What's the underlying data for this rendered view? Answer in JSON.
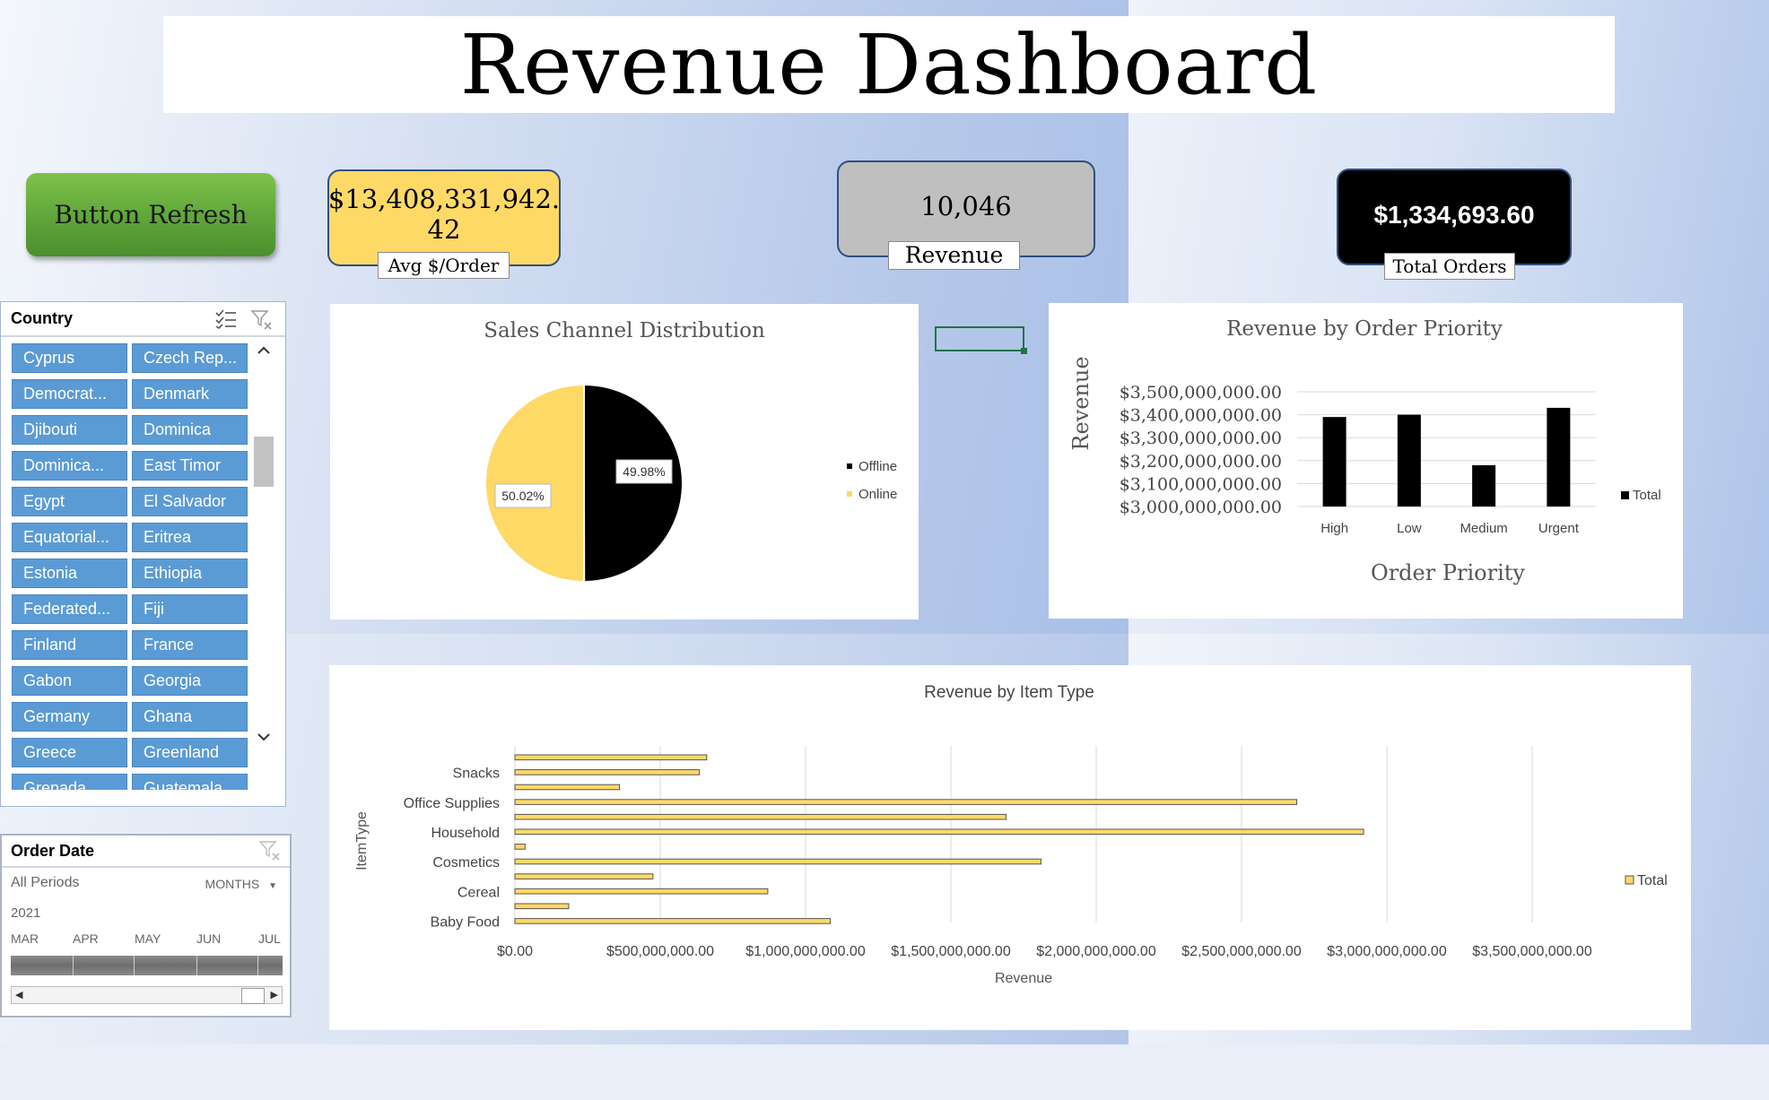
{
  "title": "Revenue Dashboard",
  "refresh_button": "Button Refresh",
  "kpis": {
    "avg_value_line1": "$13,408,331,942.",
    "avg_value_line2": "42",
    "avg_label": "Avg $/Order",
    "revenue_value": "10,046",
    "revenue_label": "Revenue",
    "orders_value": "$1,334,693.60",
    "orders_label": "Total Orders"
  },
  "country_slicer": {
    "title": "Country",
    "items": [
      "Cyprus",
      "Czech Rep...",
      "Democrat...",
      "Denmark",
      "Djibouti",
      "Dominica",
      "Dominica...",
      "East Timor",
      "Egypt",
      "El Salvador",
      "Equatorial...",
      "Eritrea",
      "Estonia",
      "Ethiopia",
      "Federated...",
      "Fiji",
      "Finland",
      "France",
      "Gabon",
      "Georgia",
      "Germany",
      "Ghana",
      "Greece",
      "Greenland",
      "Grenada",
      "Guatemala"
    ]
  },
  "timeline": {
    "title": "Order Date",
    "period": "All Periods",
    "level": "MONTHS",
    "year": "2021",
    "months": [
      "MAR",
      "APR",
      "MAY",
      "JUN",
      "JUL"
    ]
  },
  "colors": {
    "black": "#000000",
    "yellow": "#ffd966",
    "slicer_tile": "#5b9bd5"
  },
  "chart_data": [
    {
      "type": "pie",
      "title": "Sales Channel Distribution",
      "categories": [
        "Offline",
        "Online"
      ],
      "values": [
        49.98,
        50.02
      ],
      "labels": [
        "49.98%",
        "50.02%"
      ],
      "legend": [
        "Offline",
        "Online"
      ]
    },
    {
      "type": "bar",
      "title": "Revenue by Order Priority",
      "categories": [
        "High",
        "Low",
        "Medium",
        "Urgent"
      ],
      "values": [
        3390000000,
        3400000000,
        3180000000,
        3430000000
      ],
      "xlabel": "Order Priority",
      "ylabel": "Revenue",
      "ylim": [
        3000000000,
        3500000000
      ],
      "yticks": [
        "$3,000,000,000.00",
        "$3,100,000,000.00",
        "$3,200,000,000.00",
        "$3,300,000,000.00",
        "$3,400,000,000.00",
        "$3,500,000,000.00"
      ],
      "legend": "Total"
    },
    {
      "type": "bar",
      "orientation": "horizontal",
      "title": "Revenue by Item Type",
      "category_labels": [
        "Snacks",
        "Office Supplies",
        "Household",
        "Cosmetics",
        "Cereal",
        "Baby Food"
      ],
      "values": [
        660000000,
        635000000,
        360000000,
        2690000000,
        1690000000,
        2920000000,
        35000000,
        1810000000,
        475000000,
        870000000,
        185000000,
        1085000000
      ],
      "xlabel": "Revenue",
      "ylabel": "ItemType",
      "xlim": [
        0,
        3500000000
      ],
      "xticks": [
        "$0.00",
        "$500,000,000.00",
        "$1,000,000,000.00",
        "$1,500,000,000.00",
        "$2,000,000,000.00",
        "$2,500,000,000.00",
        "$3,000,000,000.00",
        "$3,500,000,000.00"
      ],
      "legend": "Total"
    }
  ]
}
